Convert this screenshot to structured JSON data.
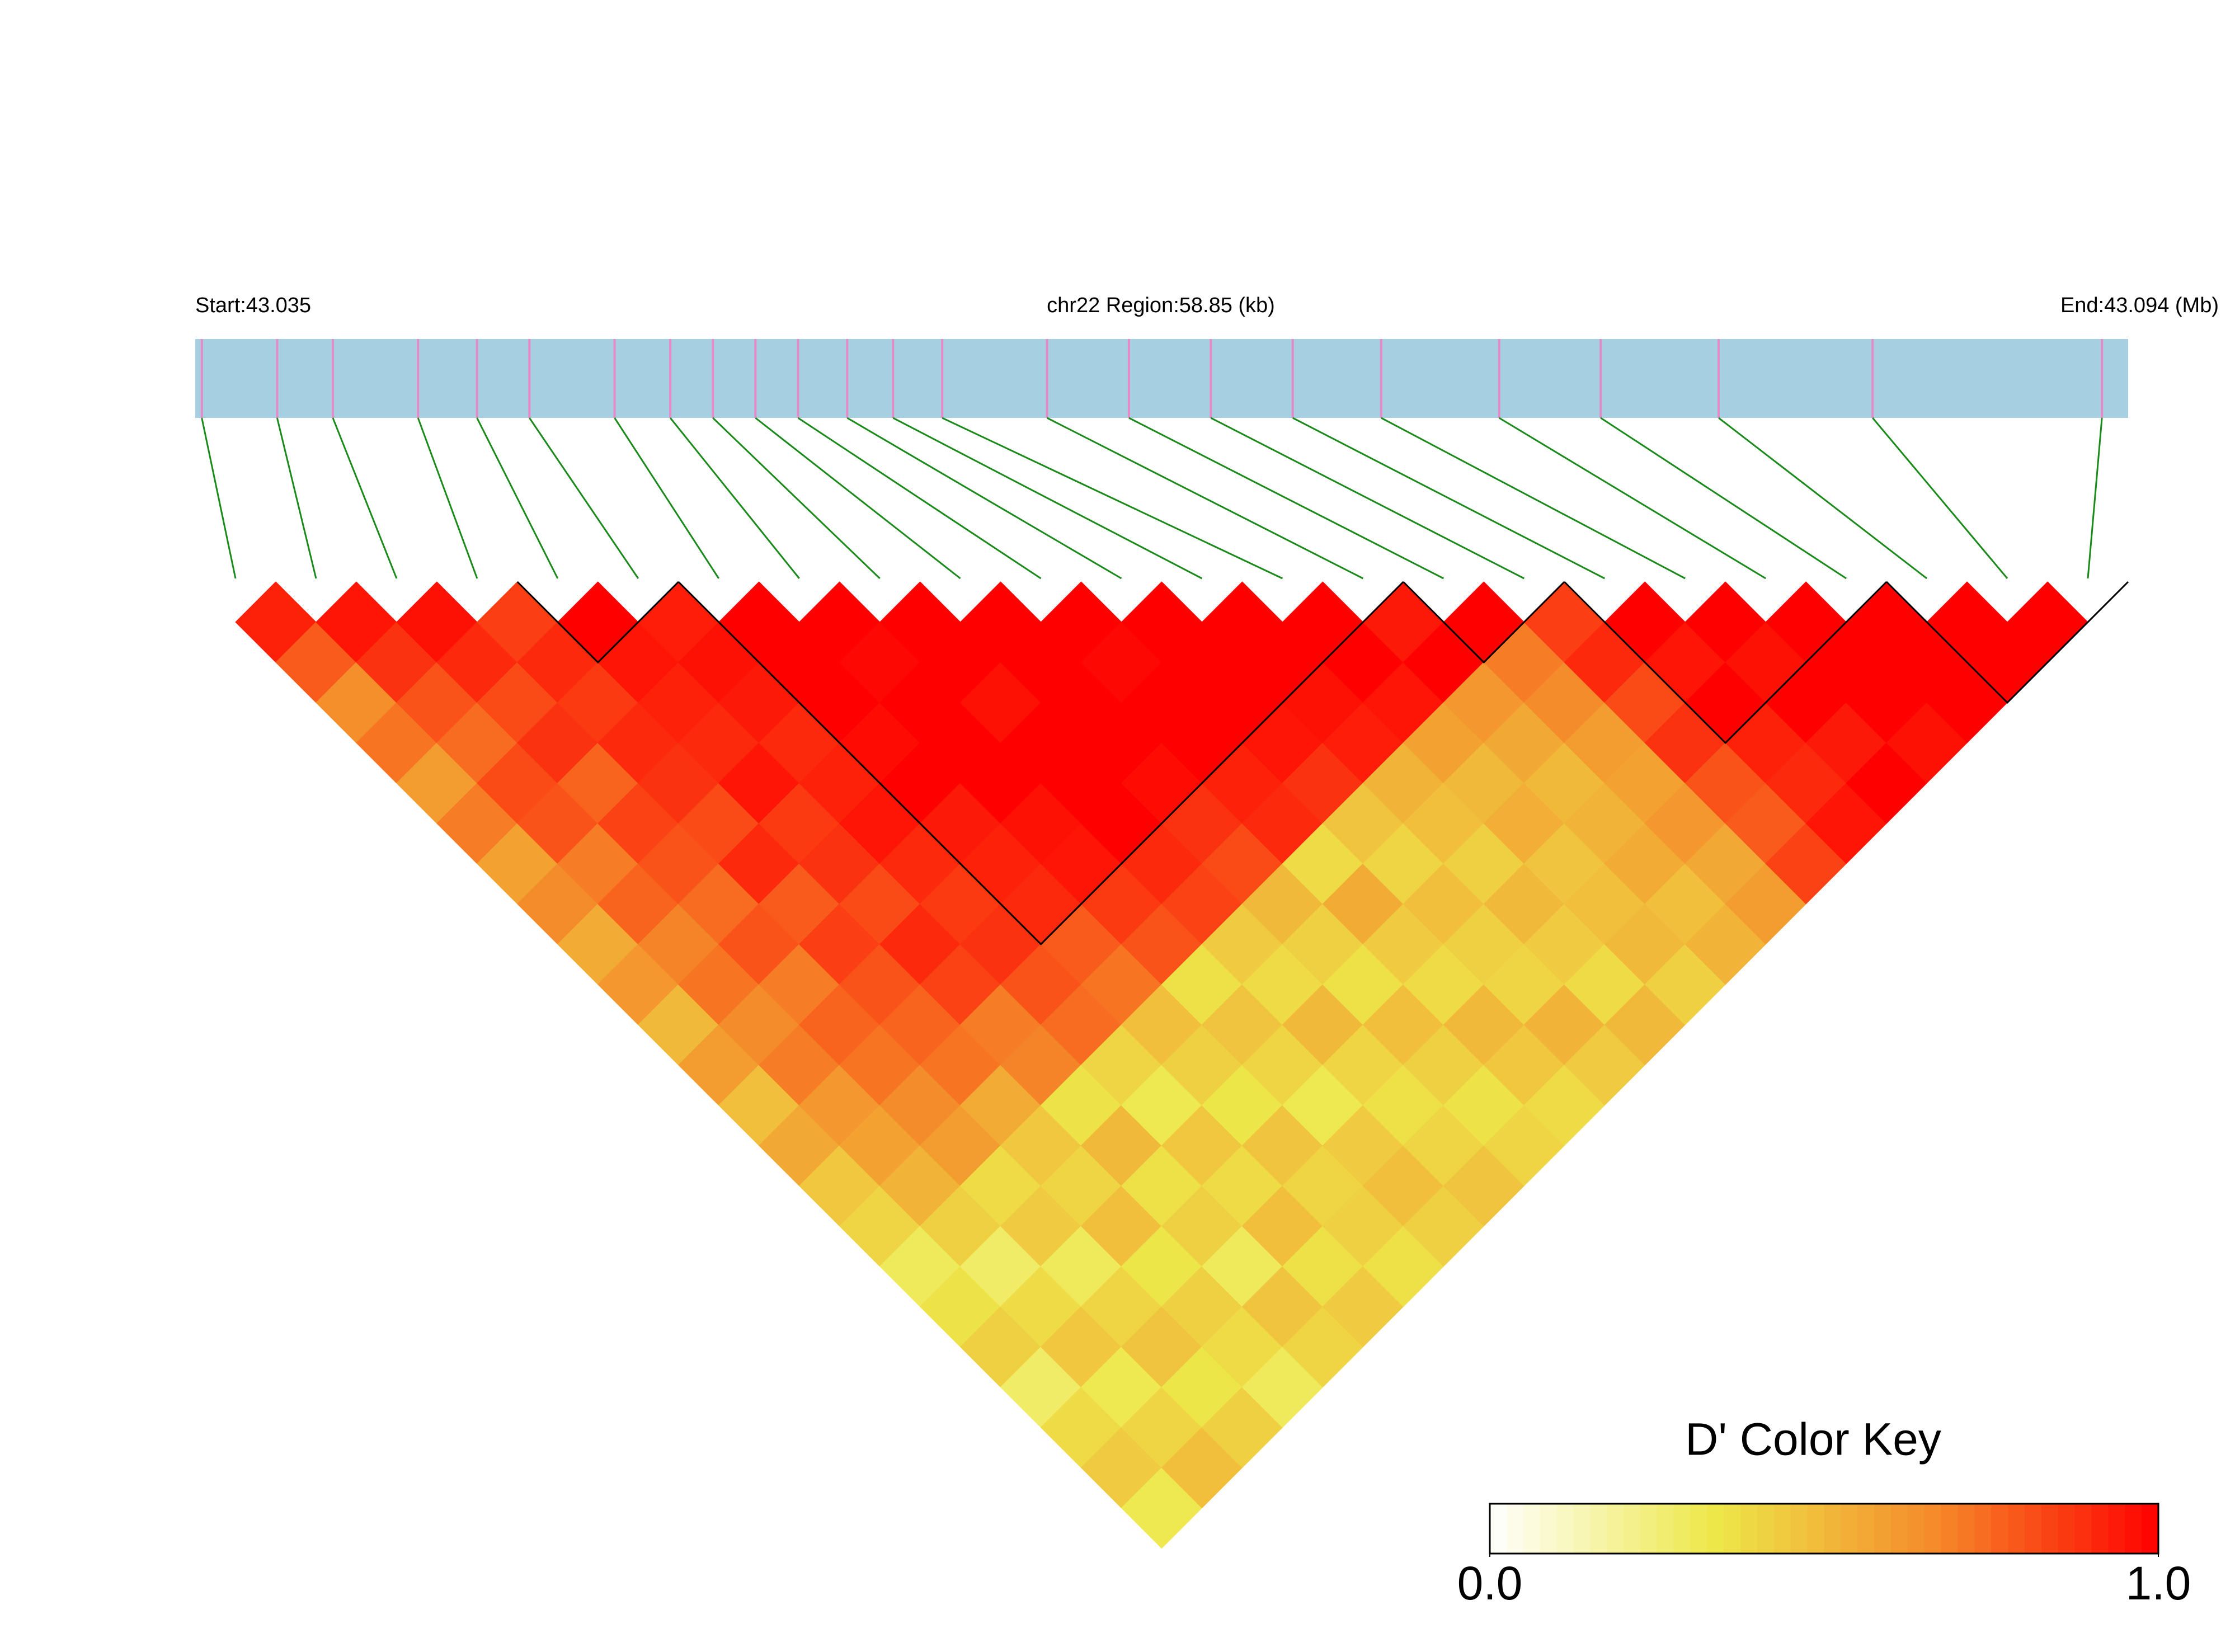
{
  "chart_data": {
    "type": "ld-heatmap",
    "start_label": "Start:43.035",
    "title": "chr22 Region:58.85 (kb)",
    "end_label": "End:43.094 (Mb)",
    "xlim": [
      43.035,
      43.094
    ],
    "positions": [
      43.0352,
      43.0375,
      43.0392,
      43.0418,
      43.0436,
      43.0452,
      43.0478,
      43.0495,
      43.0508,
      43.0521,
      43.0534,
      43.0549,
      43.0563,
      43.0578,
      43.061,
      43.0635,
      43.066,
      43.0685,
      43.0712,
      43.0748,
      43.0779,
      43.0815,
      43.0862,
      43.0932
    ],
    "values": [
      [],
      [
        0.92
      ],
      [
        0.78,
        0.95
      ],
      [
        0.65,
        0.88,
        0.96
      ],
      [
        0.72,
        0.8,
        0.9,
        0.85
      ],
      [
        0.6,
        0.74,
        0.82,
        0.9,
        1
      ],
      [
        0.7,
        0.82,
        0.88,
        0.86,
        0.95,
        0.93
      ],
      [
        0.58,
        0.8,
        0.76,
        0.9,
        0.92,
        0.96,
        1
      ],
      [
        0.66,
        0.7,
        0.84,
        0.88,
        0.9,
        0.94,
        1,
        1
      ],
      [
        0.55,
        0.76,
        0.8,
        0.82,
        0.95,
        0.9,
        1,
        0.98,
        1
      ],
      [
        0.62,
        0.68,
        0.74,
        0.9,
        0.86,
        0.92,
        0.97,
        1,
        1,
        1
      ],
      [
        0.5,
        0.72,
        0.8,
        0.78,
        0.88,
        0.95,
        1,
        1,
        0.96,
        1,
        1
      ],
      [
        0.6,
        0.66,
        0.7,
        0.85,
        0.82,
        0.9,
        0.94,
        1,
        1,
        1,
        0.98,
        1
      ],
      [
        0.48,
        0.7,
        0.76,
        0.8,
        0.9,
        0.86,
        0.92,
        0.96,
        1,
        1,
        1,
        1,
        1
      ],
      [
        0.56,
        0.62,
        0.72,
        0.76,
        0.84,
        0.88,
        0.9,
        0.95,
        1,
        0.97,
        1,
        1,
        1,
        1
      ],
      [
        0.45,
        0.58,
        0.66,
        0.72,
        0.7,
        0.8,
        0.78,
        0.86,
        0.9,
        0.88,
        0.92,
        0.95,
        0.96,
        1,
        0.94
      ],
      [
        0.4,
        0.52,
        0.6,
        0.55,
        0.68,
        0.74,
        0.72,
        0.8,
        0.84,
        0.82,
        0.9,
        0.88,
        0.93,
        0.95,
        1,
        1
      ],
      [
        0.3,
        0.42,
        0.38,
        0.45,
        0.35,
        0.4,
        0.48,
        0.36,
        0.44,
        0.5,
        0.38,
        0.46,
        0.52,
        0.58,
        0.62,
        0.7,
        0.85
      ],
      [
        0.35,
        0.28,
        0.44,
        0.4,
        0.5,
        0.32,
        0.42,
        0.46,
        0.38,
        0.42,
        0.55,
        0.4,
        0.48,
        0.5,
        0.56,
        0.66,
        0.9,
        1
      ],
      [
        0.42,
        0.38,
        0.3,
        0.48,
        0.36,
        0.45,
        0.34,
        0.4,
        0.5,
        0.36,
        0.44,
        0.48,
        0.42,
        0.54,
        0.5,
        0.6,
        0.82,
        0.95,
        1
      ],
      [
        0.28,
        0.45,
        0.4,
        0.34,
        0.42,
        0.38,
        0.46,
        0.32,
        0.4,
        0.48,
        0.38,
        0.42,
        0.5,
        0.46,
        0.52,
        0.58,
        0.88,
        1,
        0.96,
        1
      ],
      [
        0.38,
        0.32,
        0.46,
        0.42,
        0.3,
        0.48,
        0.4,
        0.44,
        0.36,
        0.42,
        0.5,
        0.4,
        0.44,
        0.48,
        0.55,
        0.62,
        0.8,
        0.92,
        1,
        1,
        1
      ],
      [
        0.44,
        0.4,
        0.34,
        0.38,
        0.46,
        0.36,
        0.42,
        0.48,
        0.4,
        0.35,
        0.45,
        0.52,
        0.38,
        0.5,
        0.48,
        0.56,
        0.78,
        0.9,
        0.94,
        1,
        1,
        1
      ],
      [
        0.32,
        0.48,
        0.42,
        0.3,
        0.4,
        0.44,
        0.36,
        0.42,
        0.46,
        0.4,
        0.38,
        0.44,
        0.5,
        0.42,
        0.52,
        0.6,
        0.84,
        0.95,
        1,
        0.96,
        1,
        1,
        1
      ]
    ],
    "blocks": [
      [
        4,
        5
      ],
      [
        6,
        14
      ],
      [
        15,
        16
      ],
      [
        17,
        20
      ],
      [
        21,
        23
      ]
    ],
    "bar_color": "#a6cfe2",
    "snp_color": "#e58ac6",
    "link_color": "#1a8a1a",
    "colorscale": [
      "#ffffff",
      "#ede84a",
      "#f58a2a",
      "#ff0000"
    ],
    "legend_title": "D' Color Key",
    "legend_lim": [
      0,
      1
    ],
    "legend_ticks": [
      {
        "value": 0,
        "label": "0.0"
      },
      {
        "value": 1,
        "label": "1.0"
      }
    ]
  }
}
